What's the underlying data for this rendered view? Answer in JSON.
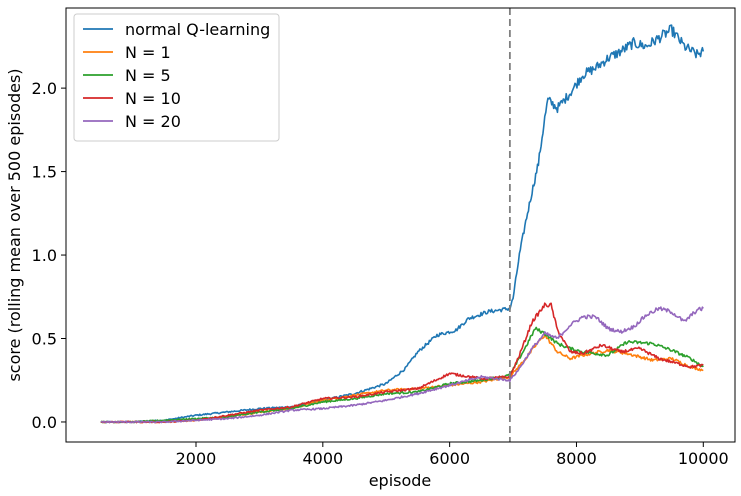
{
  "chart_data": {
    "type": "line",
    "title": "",
    "xlabel": "episode",
    "ylabel": "score (rolling mean over 500 episodes)",
    "xlim": [
      -50,
      10500
    ],
    "ylim": [
      -0.12,
      2.48
    ],
    "xticks": [
      2000,
      4000,
      6000,
      8000,
      10000
    ],
    "yticks": [
      0.0,
      0.5,
      1.0,
      1.5,
      2.0
    ],
    "xtick_labels": [
      "2000",
      "4000",
      "6000",
      "8000",
      "10000"
    ],
    "ytick_labels": [
      "0.0",
      "0.5",
      "1.0",
      "1.5",
      "2.0"
    ],
    "grid": false,
    "legend_position": "top-left",
    "vline": {
      "x": 6950,
      "style": "dashed",
      "color": "#808080"
    },
    "series": [
      {
        "name": "normal Q-learning",
        "color": "#1f77b4",
        "points": [
          [
            500,
            0.0
          ],
          [
            1000,
            0.0
          ],
          [
            1500,
            0.01
          ],
          [
            2000,
            0.04
          ],
          [
            2500,
            0.06
          ],
          [
            3000,
            0.08
          ],
          [
            3500,
            0.09
          ],
          [
            4000,
            0.13
          ],
          [
            4500,
            0.17
          ],
          [
            5000,
            0.23
          ],
          [
            5300,
            0.32
          ],
          [
            5500,
            0.42
          ],
          [
            5800,
            0.52
          ],
          [
            6100,
            0.55
          ],
          [
            6300,
            0.62
          ],
          [
            6600,
            0.66
          ],
          [
            6950,
            0.68
          ],
          [
            7000,
            0.74
          ],
          [
            7100,
            1.0
          ],
          [
            7200,
            1.2
          ],
          [
            7300,
            1.38
          ],
          [
            7400,
            1.55
          ],
          [
            7500,
            1.82
          ],
          [
            7550,
            1.93
          ],
          [
            7700,
            1.88
          ],
          [
            7900,
            1.97
          ],
          [
            8100,
            2.08
          ],
          [
            8300,
            2.12
          ],
          [
            8500,
            2.18
          ],
          [
            8700,
            2.22
          ],
          [
            8900,
            2.27
          ],
          [
            9100,
            2.25
          ],
          [
            9300,
            2.3
          ],
          [
            9500,
            2.35
          ],
          [
            9700,
            2.25
          ],
          [
            9900,
            2.2
          ],
          [
            10000,
            2.22
          ]
        ]
      },
      {
        "name": "N = 1",
        "color": "#ff7f0e",
        "points": [
          [
            500,
            0.0
          ],
          [
            1000,
            0.0
          ],
          [
            1500,
            0.0
          ],
          [
            2000,
            0.01
          ],
          [
            2500,
            0.03
          ],
          [
            3000,
            0.06
          ],
          [
            3500,
            0.08
          ],
          [
            4000,
            0.13
          ],
          [
            4500,
            0.16
          ],
          [
            5000,
            0.19
          ],
          [
            5500,
            0.2
          ],
          [
            6000,
            0.22
          ],
          [
            6500,
            0.24
          ],
          [
            6950,
            0.27
          ],
          [
            7200,
            0.38
          ],
          [
            7400,
            0.48
          ],
          [
            7500,
            0.52
          ],
          [
            7700,
            0.42
          ],
          [
            7900,
            0.38
          ],
          [
            8100,
            0.4
          ],
          [
            8500,
            0.43
          ],
          [
            8800,
            0.41
          ],
          [
            9200,
            0.37
          ],
          [
            9500,
            0.38
          ],
          [
            9800,
            0.33
          ],
          [
            10000,
            0.31
          ]
        ]
      },
      {
        "name": "N = 5",
        "color": "#2ca02c",
        "points": [
          [
            500,
            0.0
          ],
          [
            1000,
            0.0
          ],
          [
            1500,
            0.01
          ],
          [
            2000,
            0.02
          ],
          [
            2500,
            0.03
          ],
          [
            3000,
            0.06
          ],
          [
            3500,
            0.08
          ],
          [
            4000,
            0.12
          ],
          [
            4500,
            0.14
          ],
          [
            5000,
            0.17
          ],
          [
            5500,
            0.18
          ],
          [
            6000,
            0.23
          ],
          [
            6500,
            0.25
          ],
          [
            6950,
            0.28
          ],
          [
            7200,
            0.45
          ],
          [
            7350,
            0.56
          ],
          [
            7500,
            0.53
          ],
          [
            7700,
            0.47
          ],
          [
            7900,
            0.44
          ],
          [
            8100,
            0.42
          ],
          [
            8500,
            0.4
          ],
          [
            8800,
            0.48
          ],
          [
            9200,
            0.47
          ],
          [
            9500,
            0.43
          ],
          [
            9800,
            0.38
          ],
          [
            10000,
            0.33
          ]
        ]
      },
      {
        "name": "N = 10",
        "color": "#d62728",
        "points": [
          [
            500,
            0.0
          ],
          [
            1000,
            0.0
          ],
          [
            1500,
            0.0
          ],
          [
            2000,
            0.01
          ],
          [
            2500,
            0.04
          ],
          [
            3000,
            0.07
          ],
          [
            3500,
            0.09
          ],
          [
            4000,
            0.14
          ],
          [
            4500,
            0.15
          ],
          [
            5000,
            0.18
          ],
          [
            5500,
            0.2
          ],
          [
            6000,
            0.29
          ],
          [
            6500,
            0.26
          ],
          [
            6950,
            0.27
          ],
          [
            7100,
            0.4
          ],
          [
            7300,
            0.6
          ],
          [
            7500,
            0.7
          ],
          [
            7600,
            0.7
          ],
          [
            7700,
            0.55
          ],
          [
            7900,
            0.42
          ],
          [
            8100,
            0.41
          ],
          [
            8400,
            0.46
          ],
          [
            8700,
            0.42
          ],
          [
            9000,
            0.44
          ],
          [
            9300,
            0.38
          ],
          [
            9600,
            0.35
          ],
          [
            9800,
            0.33
          ],
          [
            10000,
            0.34
          ]
        ]
      },
      {
        "name": "N = 20",
        "color": "#9467bd",
        "points": [
          [
            500,
            0.0
          ],
          [
            1000,
            0.0
          ],
          [
            1500,
            0.0
          ],
          [
            2000,
            0.01
          ],
          [
            2500,
            0.02
          ],
          [
            3000,
            0.04
          ],
          [
            3500,
            0.07
          ],
          [
            4000,
            0.08
          ],
          [
            4500,
            0.1
          ],
          [
            5000,
            0.13
          ],
          [
            5500,
            0.17
          ],
          [
            6000,
            0.22
          ],
          [
            6500,
            0.27
          ],
          [
            6950,
            0.25
          ],
          [
            7100,
            0.32
          ],
          [
            7300,
            0.44
          ],
          [
            7500,
            0.53
          ],
          [
            7700,
            0.5
          ],
          [
            7900,
            0.58
          ],
          [
            8100,
            0.63
          ],
          [
            8300,
            0.63
          ],
          [
            8500,
            0.56
          ],
          [
            8700,
            0.54
          ],
          [
            8900,
            0.57
          ],
          [
            9100,
            0.64
          ],
          [
            9300,
            0.68
          ],
          [
            9500,
            0.66
          ],
          [
            9700,
            0.6
          ],
          [
            9900,
            0.67
          ],
          [
            10000,
            0.68
          ]
        ]
      }
    ]
  }
}
